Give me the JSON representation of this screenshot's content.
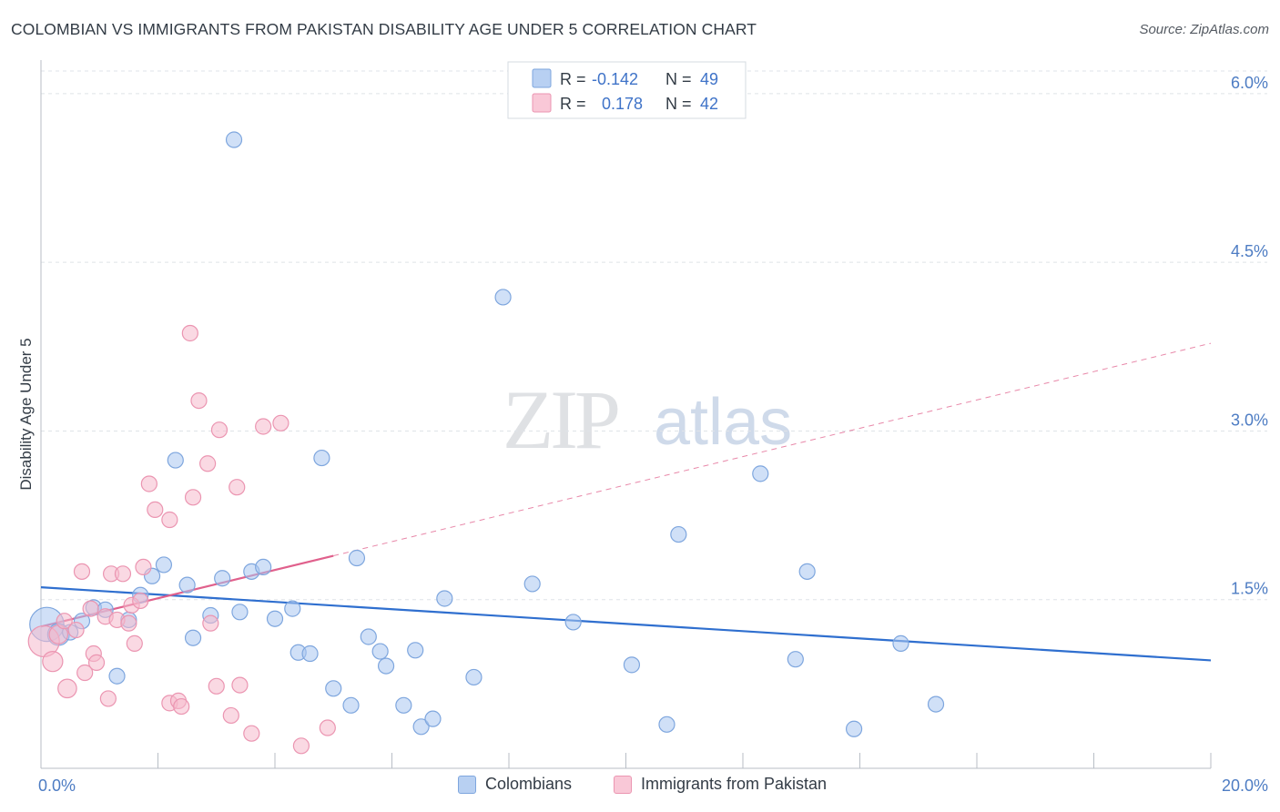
{
  "title": "COLOMBIAN VS IMMIGRANTS FROM PAKISTAN DISABILITY AGE UNDER 5 CORRELATION CHART",
  "source": "Source: ZipAtlas.com",
  "watermark": {
    "zip": "ZIP",
    "atlas": "atlas"
  },
  "legend_top": {
    "r_label": "R =",
    "n_label": "N =",
    "rows": [
      {
        "r": "-0.142",
        "n": "49"
      },
      {
        "r": "0.178",
        "n": "42"
      }
    ]
  },
  "legend_bottom": [
    {
      "label": "Colombians"
    },
    {
      "label": "Immigrants from Pakistan"
    }
  ],
  "colors": {
    "blue_fill": "#a9c6f0",
    "blue_stroke": "#7ea6de",
    "blue_line": "#2f6fcf",
    "pink_fill": "#f6b9cc",
    "pink_stroke": "#eb95b1",
    "pink_line": "#e0608c",
    "grid": "#dfe3e8",
    "axis_text": "#4d7cc3"
  },
  "chart_data": {
    "type": "scatter",
    "title": "COLOMBIAN VS IMMIGRANTS FROM PAKISTAN DISABILITY AGE UNDER 5 CORRELATION CHART",
    "xlabel": "",
    "ylabel": "Disability Age Under 5",
    "xlim": [
      0,
      20
    ],
    "ylim": [
      0,
      6.25
    ],
    "x_tick_labels": [
      "0.0%",
      "20.0%"
    ],
    "y_ticks": [
      1.5,
      3.0,
      4.5,
      6.0
    ],
    "y_tick_labels": [
      "1.5%",
      "3.0%",
      "4.5%",
      "6.0%"
    ],
    "grid": true,
    "series": [
      {
        "name": "Colombians",
        "r": -0.142,
        "n": 49,
        "trend": {
          "x0": 0,
          "y0": 1.61,
          "x1": 20,
          "y1": 0.96,
          "dashed_from": null
        },
        "points": [
          [
            0.1,
            1.28,
            2.2
          ],
          [
            0.3,
            1.19,
            1.4
          ],
          [
            0.5,
            1.21,
            1.0
          ],
          [
            0.7,
            1.31,
            1.0
          ],
          [
            0.9,
            1.43,
            1.0
          ],
          [
            1.1,
            1.41,
            1.0
          ],
          [
            1.3,
            0.82,
            1.0
          ],
          [
            1.5,
            1.32,
            1.0
          ],
          [
            1.7,
            1.54,
            1.0
          ],
          [
            1.9,
            1.71,
            1.0
          ],
          [
            2.1,
            1.81,
            1.0
          ],
          [
            2.3,
            2.74,
            1.0
          ],
          [
            2.5,
            1.63,
            1.0
          ],
          [
            2.6,
            1.16,
            1.0
          ],
          [
            2.9,
            1.36,
            1.0
          ],
          [
            3.1,
            1.69,
            1.0
          ],
          [
            3.3,
            5.59,
            1.0
          ],
          [
            3.4,
            1.39,
            1.0
          ],
          [
            3.6,
            1.75,
            1.0
          ],
          [
            3.8,
            1.79,
            1.0
          ],
          [
            4.0,
            1.33,
            1.0
          ],
          [
            4.3,
            1.42,
            1.0
          ],
          [
            4.4,
            1.03,
            1.0
          ],
          [
            4.6,
            1.02,
            1.0
          ],
          [
            4.8,
            2.76,
            1.0
          ],
          [
            5.0,
            0.71,
            1.0
          ],
          [
            5.3,
            0.56,
            1.0
          ],
          [
            5.4,
            1.87,
            1.0
          ],
          [
            5.6,
            1.17,
            1.0
          ],
          [
            5.8,
            1.04,
            1.0
          ],
          [
            5.9,
            0.91,
            1.0
          ],
          [
            6.2,
            0.56,
            1.0
          ],
          [
            6.4,
            1.05,
            1.0
          ],
          [
            6.5,
            0.37,
            1.0
          ],
          [
            6.7,
            0.44,
            1.0
          ],
          [
            6.9,
            1.51,
            1.0
          ],
          [
            7.4,
            0.81,
            1.0
          ],
          [
            7.9,
            4.19,
            1.0
          ],
          [
            8.4,
            1.64,
            1.0
          ],
          [
            9.1,
            1.3,
            1.0
          ],
          [
            10.1,
            0.92,
            1.0
          ],
          [
            10.7,
            0.39,
            1.0
          ],
          [
            10.9,
            2.08,
            1.0
          ],
          [
            12.3,
            2.62,
            1.0
          ],
          [
            12.9,
            0.97,
            1.0
          ],
          [
            13.1,
            1.75,
            1.0
          ],
          [
            13.9,
            0.35,
            1.0
          ],
          [
            14.7,
            1.11,
            1.0
          ],
          [
            15.3,
            0.57,
            1.0
          ]
        ]
      },
      {
        "name": "Immigrants from Pakistan",
        "r": 0.178,
        "n": 42,
        "trend": {
          "x0": 0,
          "y0": 1.26,
          "x1": 20,
          "y1": 3.78,
          "dashed_from": 5.0
        },
        "points": [
          [
            0.05,
            1.13,
            2.0
          ],
          [
            0.2,
            0.95,
            1.3
          ],
          [
            0.3,
            1.19,
            1.2
          ],
          [
            0.4,
            1.31,
            1.0
          ],
          [
            0.45,
            0.71,
            1.2
          ],
          [
            0.6,
            1.23,
            1.0
          ],
          [
            0.7,
            1.75,
            1.0
          ],
          [
            0.75,
            0.85,
            1.0
          ],
          [
            0.85,
            1.42,
            1.0
          ],
          [
            0.9,
            1.02,
            1.0
          ],
          [
            0.95,
            0.94,
            1.0
          ],
          [
            1.1,
            1.35,
            1.0
          ],
          [
            1.15,
            0.62,
            1.0
          ],
          [
            1.2,
            1.73,
            1.0
          ],
          [
            1.3,
            1.32,
            1.0
          ],
          [
            1.4,
            1.73,
            1.0
          ],
          [
            1.5,
            1.29,
            1.0
          ],
          [
            1.55,
            1.45,
            1.0
          ],
          [
            1.6,
            1.11,
            1.0
          ],
          [
            1.7,
            1.49,
            1.0
          ],
          [
            1.75,
            1.79,
            1.0
          ],
          [
            1.85,
            2.53,
            1.0
          ],
          [
            1.95,
            2.3,
            1.0
          ],
          [
            2.2,
            2.21,
            1.0
          ],
          [
            2.2,
            0.58,
            1.0
          ],
          [
            2.35,
            0.6,
            1.0
          ],
          [
            2.4,
            0.55,
            1.0
          ],
          [
            2.55,
            3.87,
            1.0
          ],
          [
            2.6,
            2.41,
            1.0
          ],
          [
            2.7,
            3.27,
            1.0
          ],
          [
            2.85,
            2.71,
            1.0
          ],
          [
            2.9,
            1.29,
            1.0
          ],
          [
            3.0,
            0.73,
            1.0
          ],
          [
            3.05,
            3.01,
            1.0
          ],
          [
            3.25,
            0.47,
            1.0
          ],
          [
            3.35,
            2.5,
            1.0
          ],
          [
            3.4,
            0.74,
            1.0
          ],
          [
            3.6,
            0.31,
            1.0
          ],
          [
            3.8,
            3.04,
            1.0
          ],
          [
            4.1,
            3.07,
            1.0
          ],
          [
            4.45,
            0.2,
            1.0
          ],
          [
            4.9,
            0.36,
            1.0
          ]
        ]
      }
    ]
  }
}
